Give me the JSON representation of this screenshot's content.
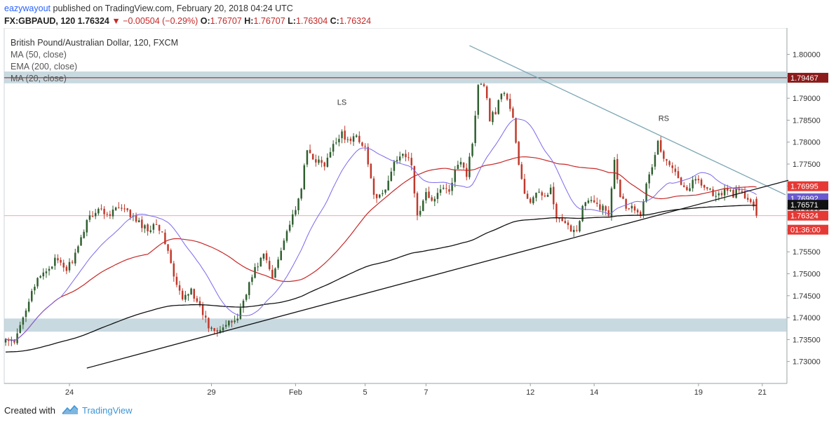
{
  "header": {
    "author": "eazywayout",
    "published_text": "published on TradingView.com, February 20, 2018 04:24 UTC",
    "symbol": "FX:GBPAUD, 120",
    "last": "1.76324",
    "change": "−0.00504 (−0.29%)",
    "ohlc": {
      "o_label": "O:",
      "o": "1.76707",
      "h_label": "H:",
      "h": "1.76707",
      "l_label": "L:",
      "l": "1.76304",
      "c_label": "C:",
      "c": "1.76324"
    }
  },
  "legend": {
    "title": "British Pound/Australian Dollar, 120, FXCM",
    "indicators": [
      "MA (50, close)",
      "EMA (200, close)",
      "MA (20, close)"
    ]
  },
  "footer": {
    "created_with": "Created with",
    "brand": "TradingView"
  },
  "colors": {
    "up": "#2f5f2f",
    "down": "#c0392b",
    "ma50": "#c62828",
    "ema200": "#111111",
    "ma20": "#7b68ee",
    "zone": "#b7ccd6",
    "trend_upper": "#7fa8b4",
    "trend_lower": "#111111",
    "resistance": "#8b1a1a"
  },
  "chart_data": {
    "type": "candlestick",
    "title": "British Pound/Australian Dollar, 120, FXCM",
    "ylim": [
      1.725,
      1.806
    ],
    "y_ticks": [
      "1.80000",
      "1.79500",
      "1.79000",
      "1.78500",
      "1.78000",
      "1.77500",
      "1.77000",
      "1.76500",
      "1.76000",
      "1.75500",
      "1.75000",
      "1.74500",
      "1.74000",
      "1.73500",
      "1.73000"
    ],
    "x_ticks": [
      "24",
      "29",
      "Feb",
      "5",
      "7",
      "12",
      "14",
      "19",
      "21"
    ],
    "x_tick_index": [
      22,
      71,
      100,
      124,
      145,
      181,
      203,
      239,
      261
    ],
    "bar_count": 270,
    "annotations": [
      {
        "text": "LS",
        "index": 116,
        "price": 1.7885
      },
      {
        "text": "RS",
        "index": 227,
        "price": 1.7848
      }
    ],
    "zones": [
      {
        "from": 1.7934,
        "to": 1.7961
      },
      {
        "from": 1.7368,
        "to": 1.7398
      }
    ],
    "resistance_level": 1.79467,
    "trendlines": [
      {
        "name": "descending",
        "from": [
          160,
          1.802
        ],
        "to": [
          269,
          1.768
        ]
      },
      {
        "name": "ascending",
        "from": [
          28,
          1.7285
        ],
        "to": [
          270,
          1.7713
        ]
      }
    ],
    "price_labels": [
      {
        "value": "1.79467",
        "price": 1.79467,
        "color": "#8b1a1a"
      },
      {
        "value": "1.76995",
        "price": 1.76995,
        "color": "#e53935"
      },
      {
        "value": "1.76992",
        "price": 1.76992,
        "color": "#6a5acd",
        "offset": 17
      },
      {
        "value": "1.76571",
        "price": 1.76571,
        "color": "#111111"
      },
      {
        "value": "1.76324",
        "price": 1.76324,
        "color": "#e53935"
      },
      {
        "value": "01:36:00",
        "price": 1.76324,
        "color": "#e53935",
        "offset": 20
      }
    ],
    "anchors": [
      [
        0,
        1.735
      ],
      [
        3,
        1.734
      ],
      [
        6,
        1.74
      ],
      [
        9,
        1.7465
      ],
      [
        13,
        1.75
      ],
      [
        17,
        1.753
      ],
      [
        21,
        1.751
      ],
      [
        25,
        1.7555
      ],
      [
        28,
        1.7625
      ],
      [
        32,
        1.7648
      ],
      [
        35,
        1.7635
      ],
      [
        38,
        1.765
      ],
      [
        42,
        1.764
      ],
      [
        45,
        1.762
      ],
      [
        49,
        1.76
      ],
      [
        52,
        1.762
      ],
      [
        56,
        1.7555
      ],
      [
        58,
        1.749
      ],
      [
        61,
        1.744
      ],
      [
        64,
        1.747
      ],
      [
        66,
        1.743
      ],
      [
        68,
        1.741
      ],
      [
        70,
        1.738
      ],
      [
        73,
        1.7375
      ],
      [
        77,
        1.7385
      ],
      [
        80,
        1.74
      ],
      [
        83,
        1.746
      ],
      [
        86,
        1.751
      ],
      [
        89,
        1.7545
      ],
      [
        92,
        1.749
      ],
      [
        95,
        1.756
      ],
      [
        98,
        1.7615
      ],
      [
        100,
        1.764
      ],
      [
        102,
        1.77
      ],
      [
        104,
        1.778
      ],
      [
        107,
        1.776
      ],
      [
        110,
        1.7745
      ],
      [
        113,
        1.779
      ],
      [
        116,
        1.7825
      ],
      [
        118,
        1.78
      ],
      [
        121,
        1.7815
      ],
      [
        124,
        1.779
      ],
      [
        126,
        1.771
      ],
      [
        128,
        1.7665
      ],
      [
        131,
        1.769
      ],
      [
        134,
        1.7755
      ],
      [
        137,
        1.778
      ],
      [
        140,
        1.7745
      ],
      [
        142,
        1.763
      ],
      [
        145,
        1.768
      ],
      [
        148,
        1.767
      ],
      [
        151,
        1.77
      ],
      [
        153,
        1.768
      ],
      [
        155,
        1.7745
      ],
      [
        157,
        1.776
      ],
      [
        159,
        1.7725
      ],
      [
        161,
        1.78
      ],
      [
        163,
        1.7935
      ],
      [
        165,
        1.7935
      ],
      [
        167,
        1.7855
      ],
      [
        169,
        1.787
      ],
      [
        171,
        1.7915
      ],
      [
        173,
        1.79
      ],
      [
        175,
        1.7855
      ],
      [
        177,
        1.7745
      ],
      [
        179,
        1.768
      ],
      [
        181,
        1.7665
      ],
      [
        183,
        1.768
      ],
      [
        185,
        1.768
      ],
      [
        188,
        1.769
      ],
      [
        190,
        1.7625
      ],
      [
        192,
        1.7615
      ],
      [
        194,
        1.7605
      ],
      [
        197,
        1.76
      ],
      [
        199,
        1.7655
      ],
      [
        201,
        1.7665
      ],
      [
        203,
        1.766
      ],
      [
        206,
        1.765
      ],
      [
        208,
        1.7635
      ],
      [
        210,
        1.7765
      ],
      [
        212,
        1.768
      ],
      [
        214,
        1.7655
      ],
      [
        217,
        1.765
      ],
      [
        219,
        1.764
      ],
      [
        221,
        1.77
      ],
      [
        223,
        1.7745
      ],
      [
        225,
        1.78
      ],
      [
        227,
        1.776
      ],
      [
        229,
        1.7745
      ],
      [
        231,
        1.774
      ],
      [
        233,
        1.771
      ],
      [
        235,
        1.769
      ],
      [
        237,
        1.771
      ],
      [
        239,
        1.7715
      ],
      [
        241,
        1.77
      ],
      [
        243,
        1.769
      ],
      [
        245,
        1.7675
      ],
      [
        247,
        1.768
      ],
      [
        249,
        1.7695
      ],
      [
        251,
        1.768
      ],
      [
        253,
        1.769
      ],
      [
        255,
        1.7675
      ],
      [
        257,
        1.766
      ],
      [
        259,
        1.7632
      ]
    ]
  }
}
